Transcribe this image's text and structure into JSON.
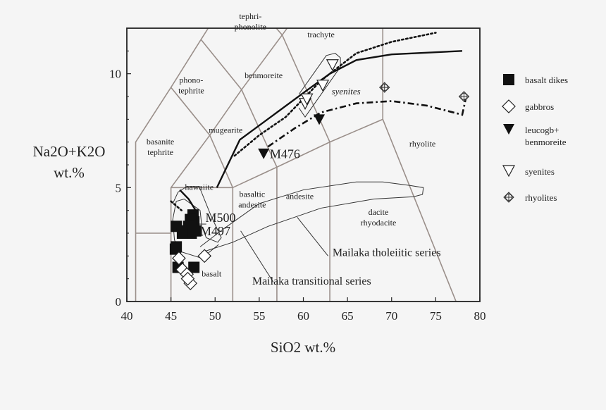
{
  "chart_data": {
    "type": "scatter",
    "title": "",
    "xlabel": "SiO2 wt.%",
    "ylabel_line1": "Na2O+K2O",
    "ylabel_line2": "wt.%",
    "xlim": [
      40,
      80
    ],
    "ylim": [
      0,
      12
    ],
    "xticks": [
      40,
      45,
      50,
      55,
      60,
      65,
      70,
      75,
      80
    ],
    "yticks": [
      0,
      5,
      10
    ],
    "grid": false,
    "legend_position": "right",
    "colors": {
      "field_lines": "#9a8f8a",
      "axis": "#222222",
      "marks": "#111111"
    },
    "fields": [
      {
        "name": "tephri-",
        "name2": "phonolite",
        "x": 54,
        "y": 12.4
      },
      {
        "name": "trachyte",
        "x": 62,
        "y": 11.6
      },
      {
        "name": "phono-",
        "name2": "tephrite",
        "x": 47.3,
        "y": 9.6
      },
      {
        "name": "benmoreite",
        "x": 55.5,
        "y": 9.8
      },
      {
        "name": "basanite",
        "name2": "tephrite",
        "x": 43.8,
        "y": 6.9
      },
      {
        "name": "mugearite",
        "x": 51.2,
        "y": 7.4
      },
      {
        "name": "rhyolite",
        "x": 73.5,
        "y": 6.8
      },
      {
        "name": "hawaiite",
        "x": 48.2,
        "y": 4.9
      },
      {
        "name": "basaltic",
        "name2": "andesite",
        "x": 54.2,
        "y": 4.6
      },
      {
        "name": "andesite",
        "x": 59.6,
        "y": 4.5
      },
      {
        "name": "dacite",
        "name2": "rhyodacite",
        "x": 68.5,
        "y": 3.8
      },
      {
        "name": "basalt",
        "x": 49.6,
        "y": 1.1
      }
    ],
    "annotations": [
      {
        "text": "syenites",
        "x": 63.2,
        "y": 9.1,
        "italic": true
      },
      {
        "text": "M476",
        "x": 56.2,
        "y": 6.3
      },
      {
        "text": "M500",
        "x": 48.9,
        "y": 3.5
      },
      {
        "text": "M497",
        "x": 48.3,
        "y": 2.9
      },
      {
        "text": "Mailaka tholeiitic series",
        "x": 63.3,
        "y": 2.0
      },
      {
        "text": "Mailaka transitional series",
        "x": 54.2,
        "y": 0.75
      }
    ],
    "series": [
      {
        "name": "basalt dikes",
        "marker": "filled-square",
        "points": [
          [
            47.5,
            3.8
          ],
          [
            47.6,
            3.5
          ],
          [
            47.2,
            3.6
          ],
          [
            47.0,
            3.3
          ],
          [
            45.6,
            3.3
          ],
          [
            46.5,
            3.1
          ],
          [
            47.3,
            3.0
          ],
          [
            47.8,
            3.1
          ],
          [
            46.3,
            3.0
          ],
          [
            45.5,
            2.3
          ],
          [
            45.6,
            2.4
          ],
          [
            45.8,
            1.5
          ],
          [
            47.6,
            1.5
          ]
        ]
      },
      {
        "name": "gabbros",
        "marker": "open-diamond",
        "points": [
          [
            48.8,
            2.0
          ],
          [
            45.9,
            1.9
          ],
          [
            46.3,
            1.4
          ],
          [
            46.8,
            1.2
          ],
          [
            47.2,
            0.8
          ],
          [
            46.9,
            1.0
          ]
        ]
      },
      {
        "name": "leucogb+",
        "name2": "benmoreite",
        "marker": "filled-triangle-down",
        "points": [
          [
            55.5,
            6.5
          ],
          [
            61.8,
            8.0
          ]
        ]
      },
      {
        "name": "syenites",
        "marker": "open-triangle-down",
        "points": [
          [
            60.2,
            8.7
          ],
          [
            60.4,
            8.9
          ],
          [
            62.2,
            9.5
          ],
          [
            63.3,
            10.4
          ]
        ]
      },
      {
        "name": "rhyolites",
        "marker": "circled-cross-diamond",
        "points": [
          [
            69.2,
            9.4
          ],
          [
            78.2,
            9.0
          ]
        ]
      }
    ],
    "trend_lines": [
      {
        "style": "solid",
        "points": [
          [
            50.2,
            5.0
          ],
          [
            52.8,
            7.1
          ],
          [
            57,
            8.3
          ],
          [
            60.5,
            9.3
          ],
          [
            63,
            10.0
          ],
          [
            66,
            10.6
          ],
          [
            70,
            10.85
          ],
          [
            78,
            11.0
          ]
        ]
      },
      {
        "style": "solid",
        "points": [
          [
            46.0,
            4.9
          ],
          [
            47.0,
            4.5
          ],
          [
            47.8,
            4.0
          ]
        ]
      },
      {
        "style": "dotted",
        "points": [
          [
            52.2,
            6.4
          ],
          [
            55,
            7.3
          ],
          [
            58,
            8.1
          ],
          [
            60,
            8.9
          ],
          [
            62,
            9.7
          ],
          [
            66,
            10.9
          ],
          [
            70,
            11.4
          ],
          [
            75,
            11.8
          ]
        ]
      },
      {
        "style": "dotted",
        "points": [
          [
            45.0,
            4.4
          ],
          [
            45.6,
            4.2
          ],
          [
            46.2,
            4.0
          ]
        ]
      },
      {
        "style": "dashdot",
        "points": [
          [
            56,
            6.8
          ],
          [
            59,
            7.6
          ],
          [
            62,
            8.3
          ],
          [
            66,
            8.7
          ],
          [
            70,
            8.8
          ],
          [
            74,
            8.6
          ],
          [
            78,
            8.2
          ],
          [
            78.4,
            8.9
          ]
        ]
      }
    ]
  },
  "legend_title": ""
}
